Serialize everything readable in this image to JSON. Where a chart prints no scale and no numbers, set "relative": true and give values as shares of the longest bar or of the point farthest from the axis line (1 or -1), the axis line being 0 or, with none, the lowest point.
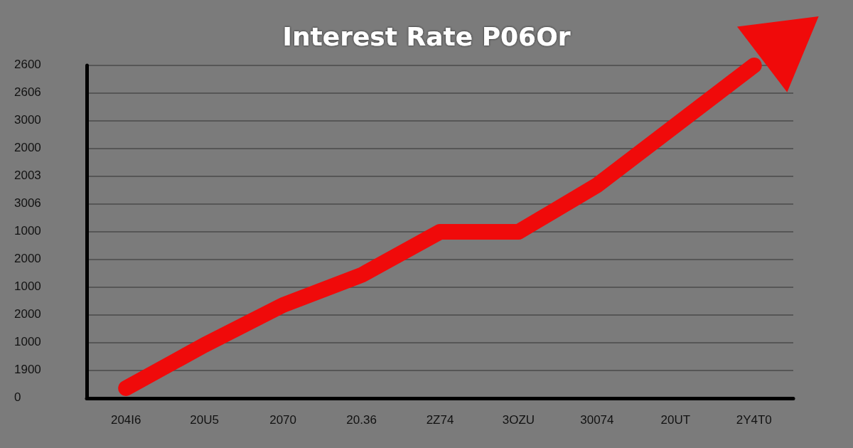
{
  "chart_data": {
    "type": "line",
    "title": "Interest Rate P06Or",
    "relative": true,
    "categories": [
      "204I6",
      "20U5",
      "2070",
      "20.36",
      "2Z74",
      "3OZU",
      "30074",
      "20UT",
      "2Y4T0"
    ],
    "series": [
      {
        "color": "#f00a0a",
        "values": [
          0.03,
          0.16,
          0.28,
          0.37,
          0.5,
          0.5,
          0.64,
          0.82,
          1
        ]
      }
    ],
    "annotations": [
      "2600",
      "2606",
      "3000",
      "2000",
      "2003",
      "3006",
      "1000",
      "2000",
      "1000",
      "2000",
      "1000",
      "1900",
      "0"
    ],
    "grid": "y",
    "line_style": "solid"
  }
}
